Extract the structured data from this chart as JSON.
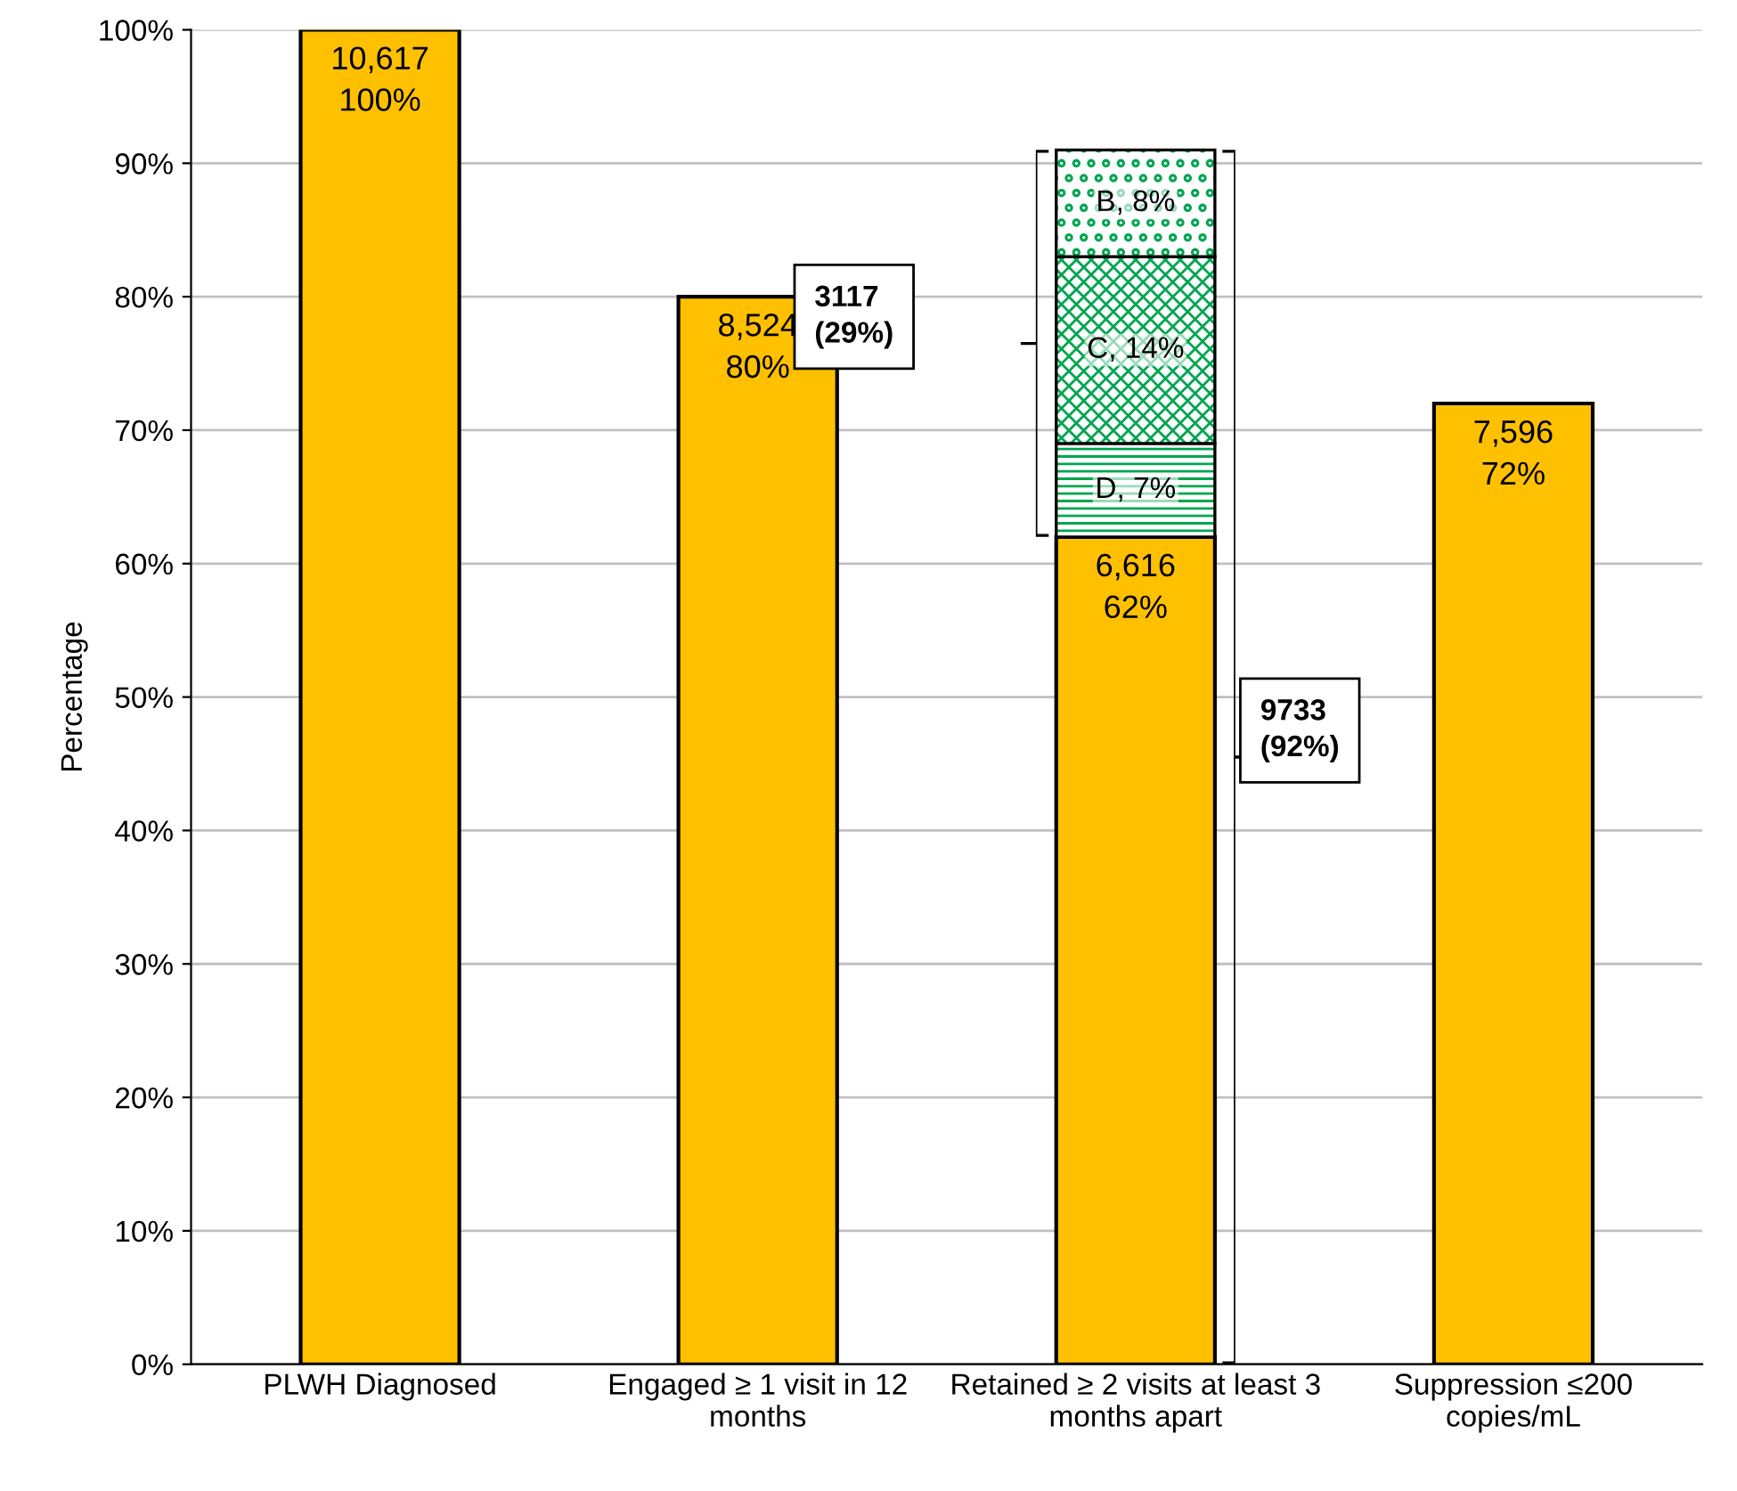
{
  "chart_data": {
    "type": "bar",
    "stacked": true,
    "ylabel": "Percentage",
    "categories": [
      "PLWH Diagnosed",
      "Engaged ≥ 1 visit in 12 months",
      "Retained ≥ 2 visits at least 3 months apart",
      "Suppression ≤200 copies/mL"
    ],
    "series": [
      {
        "color": "#ffc000",
        "values": [
          100,
          80,
          62,
          72
        ],
        "value_labels": [
          "10,617\n100%",
          "8,524\n80%",
          "6,616\n62%",
          "7,596\n72%"
        ]
      },
      {
        "color": "#00a550",
        "values": [
          null,
          null,
          7,
          null
        ],
        "value_labels": [
          null,
          null,
          "D, 7%",
          null
        ]
      },
      {
        "color": "#00a550",
        "values": [
          null,
          null,
          14,
          null
        ],
        "value_labels": [
          null,
          null,
          "C, 14%",
          null
        ]
      },
      {
        "color": "#00a550",
        "values": [
          null,
          null,
          8,
          null
        ],
        "value_labels": [
          null,
          null,
          "B, 8%",
          null
        ]
      }
    ],
    "annotations": [
      "3117\n(29%)",
      "9733\n(92%)"
    ],
    "ylim": [
      0,
      100
    ],
    "yticks": [
      {
        "value": 0,
        "label": "0%"
      },
      {
        "value": 10,
        "label": "10%"
      },
      {
        "value": 20,
        "label": "20%"
      },
      {
        "value": 30,
        "label": "30%"
      },
      {
        "value": 40,
        "label": "40%"
      },
      {
        "value": 50,
        "label": "50%"
      },
      {
        "value": 60,
        "label": "60%"
      },
      {
        "value": 70,
        "label": "70%"
      },
      {
        "value": 80,
        "label": "80%"
      },
      {
        "value": 90,
        "label": "90%"
      },
      {
        "value": 100,
        "label": "100%"
      }
    ],
    "grid": "y"
  }
}
